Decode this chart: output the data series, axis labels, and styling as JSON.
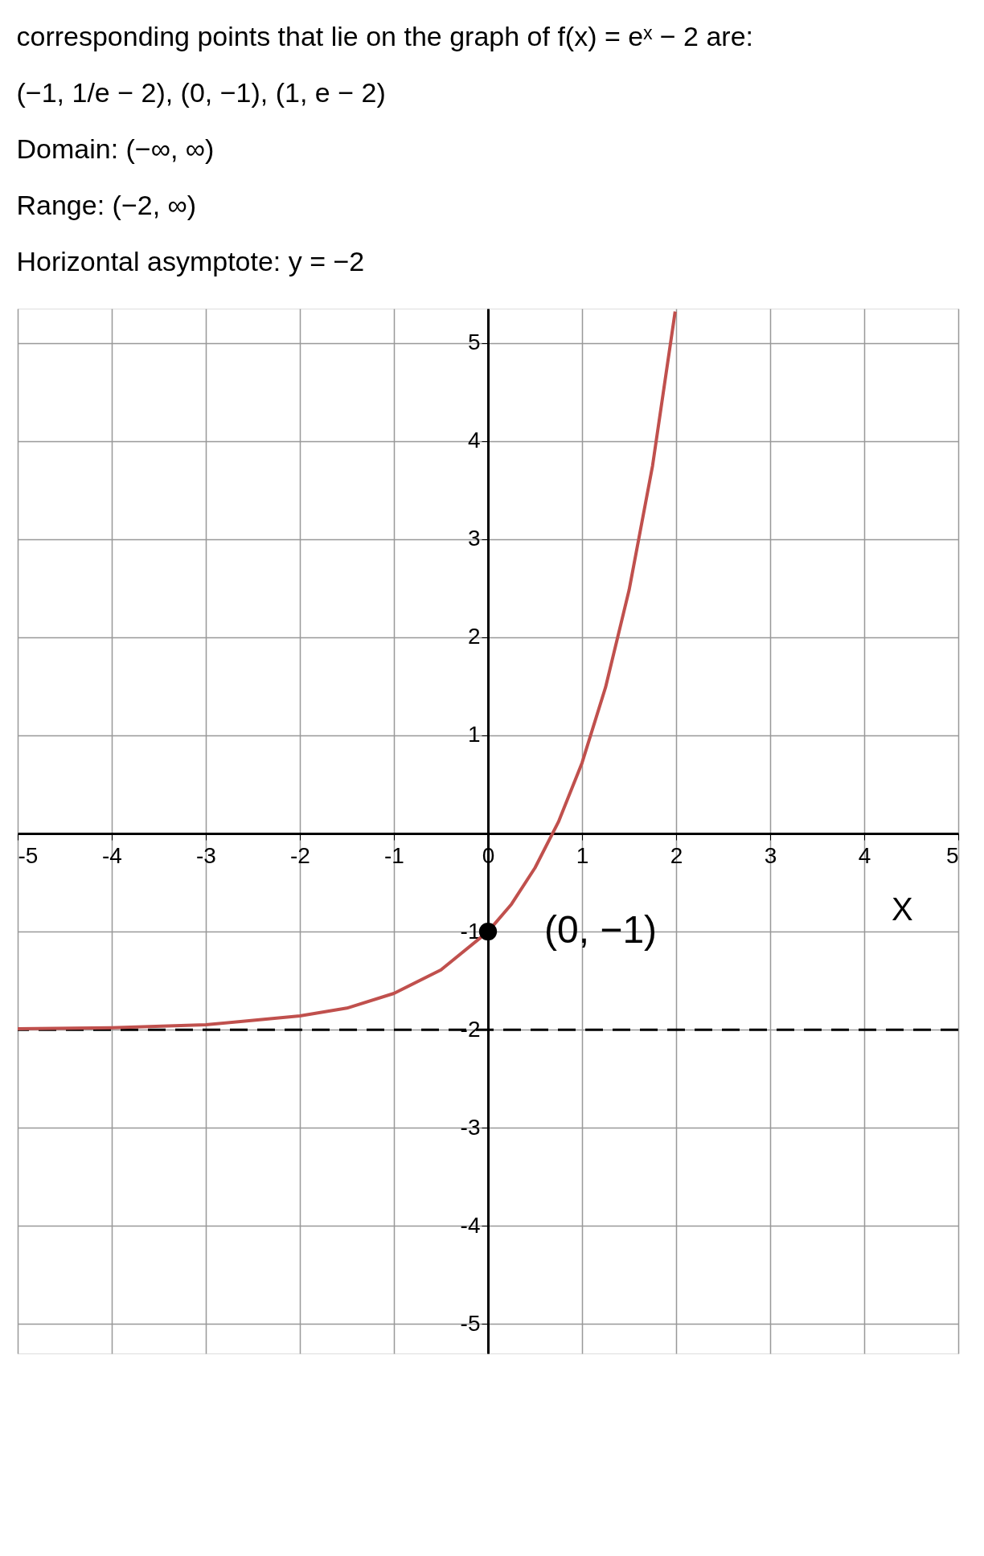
{
  "chart_data": {
    "type": "line",
    "title": [
      "corresponding points that lie on the graph of f(x) = eˣ − 2 are:",
      "(−1, 1/e − 2),  (0, −1),  (1, e − 2)",
      "Domain: (−∞, ∞)",
      "Range: (−2, ∞)",
      "Horizontal asymptote: y = −2"
    ],
    "xlabel": "X",
    "xlim": [
      -5,
      5
    ],
    "ylim": [
      -5.3,
      5.35
    ],
    "xticks": [
      -5,
      -4,
      -3,
      -2,
      -1,
      0,
      1,
      2,
      3,
      4,
      5
    ],
    "yticks": [
      -5,
      -4,
      -3,
      -2,
      -1,
      1,
      2,
      3,
      4,
      5
    ],
    "grid": true,
    "series": [
      {
        "color": "#c0504d",
        "x": [
          -5,
          -4,
          -3,
          -2,
          -1.5,
          -1,
          -0.5,
          0,
          0.25,
          0.5,
          0.75,
          1,
          1.25,
          1.5,
          1.75,
          1.99
        ],
        "values": [
          -1.99,
          -1.98,
          -1.95,
          -1.86,
          -1.78,
          -1.63,
          -1.39,
          -1,
          -0.72,
          -0.35,
          0.12,
          0.72,
          1.49,
          2.48,
          3.75,
          5.32
        ]
      },
      {
        "type": "scatter",
        "color": "#000000",
        "x": [
          0
        ],
        "values": [
          -1
        ]
      }
    ],
    "ref_lines": [
      {
        "axis": "y",
        "value": -2,
        "line_style": "dashed",
        "color": "#000000"
      }
    ],
    "annotations": [
      {
        "text": "(0, −1)",
        "x": 0,
        "y": -1
      }
    ]
  }
}
